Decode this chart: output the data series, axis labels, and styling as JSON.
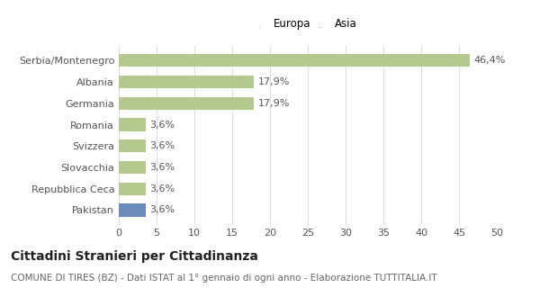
{
  "categories": [
    "Serbia/Montenegro",
    "Albania",
    "Germania",
    "Romania",
    "Svizzera",
    "Slovacchia",
    "Repubblica Ceca",
    "Pakistan"
  ],
  "values": [
    46.4,
    17.9,
    17.9,
    3.6,
    3.6,
    3.6,
    3.6,
    3.6
  ],
  "labels": [
    "46,4%",
    "17,9%",
    "17,9%",
    "3,6%",
    "3,6%",
    "3,6%",
    "3,6%",
    "3,6%"
  ],
  "colors": [
    "#b5c98e",
    "#b5c98e",
    "#b5c98e",
    "#b5c98e",
    "#b5c98e",
    "#b5c98e",
    "#b5c98e",
    "#6b8cba"
  ],
  "legend_entries": [
    "Europa",
    "Asia"
  ],
  "legend_colors": [
    "#b5c98e",
    "#6b8cba"
  ],
  "title": "Cittadini Stranieri per Cittadinanza",
  "subtitle": "COMUNE DI TIRES (BZ) - Dati ISTAT al 1° gennaio di ogni anno - Elaborazione TUTTITALIA.IT",
  "xlim": [
    0,
    50
  ],
  "xticks": [
    0,
    5,
    10,
    15,
    20,
    25,
    30,
    35,
    40,
    45,
    50
  ],
  "background_color": "#ffffff",
  "grid_color": "#dddddd",
  "bar_height": 0.6,
  "title_fontsize": 10,
  "subtitle_fontsize": 7.5,
  "tick_fontsize": 8,
  "label_fontsize": 8,
  "legend_fontsize": 8.5
}
